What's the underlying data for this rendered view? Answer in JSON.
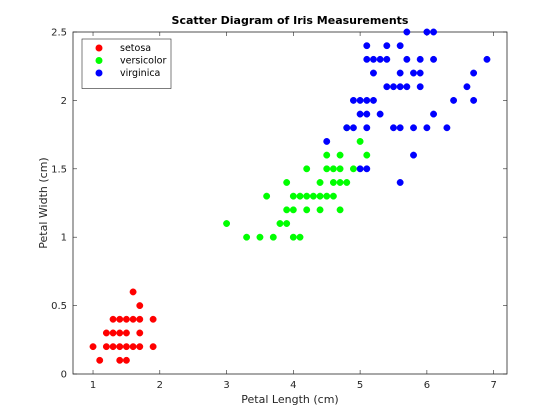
{
  "chart_data": {
    "type": "scatter",
    "title": "Scatter Diagram of Iris Measurements",
    "xlabel": "Petal Length (cm)",
    "ylabel": "Petal Width (cm)",
    "xlim": [
      0.7,
      7.2
    ],
    "ylim": [
      0,
      2.5
    ],
    "xticks": [
      1,
      2,
      3,
      4,
      5,
      6,
      7
    ],
    "yticks": [
      0,
      0.5,
      1,
      1.5,
      2,
      2.5
    ],
    "xtick_labels": [
      "1",
      "2",
      "3",
      "4",
      "5",
      "6",
      "7"
    ],
    "ytick_labels": [
      "0",
      "0.5",
      "1",
      "1.5",
      "2",
      "2.5"
    ],
    "grid": false,
    "legend_position": "top-left",
    "series": [
      {
        "name": "setosa",
        "color": "#ff0000",
        "points": [
          [
            1.0,
            0.2
          ],
          [
            1.1,
            0.1
          ],
          [
            1.2,
            0.2
          ],
          [
            1.3,
            0.2
          ],
          [
            1.3,
            0.3
          ],
          [
            1.3,
            0.4
          ],
          [
            1.4,
            0.1
          ],
          [
            1.4,
            0.2
          ],
          [
            1.4,
            0.3
          ],
          [
            1.5,
            0.1
          ],
          [
            1.5,
            0.2
          ],
          [
            1.5,
            0.3
          ],
          [
            1.5,
            0.4
          ],
          [
            1.6,
            0.2
          ],
          [
            1.6,
            0.4
          ],
          [
            1.6,
            0.6
          ],
          [
            1.7,
            0.2
          ],
          [
            1.7,
            0.3
          ],
          [
            1.7,
            0.4
          ],
          [
            1.7,
            0.5
          ],
          [
            1.9,
            0.2
          ],
          [
            1.9,
            0.4
          ],
          [
            1.2,
            0.3
          ],
          [
            1.4,
            0.4
          ]
        ]
      },
      {
        "name": "versicolor",
        "color": "#00ff00",
        "points": [
          [
            3.0,
            1.1
          ],
          [
            3.3,
            1.0
          ],
          [
            3.5,
            1.0
          ],
          [
            3.6,
            1.3
          ],
          [
            3.7,
            1.0
          ],
          [
            3.8,
            1.1
          ],
          [
            3.9,
            1.1
          ],
          [
            3.9,
            1.2
          ],
          [
            3.9,
            1.4
          ],
          [
            4.0,
            1.0
          ],
          [
            4.0,
            1.2
          ],
          [
            4.0,
            1.3
          ],
          [
            4.1,
            1.0
          ],
          [
            4.1,
            1.3
          ],
          [
            4.2,
            1.2
          ],
          [
            4.2,
            1.3
          ],
          [
            4.2,
            1.5
          ],
          [
            4.3,
            1.3
          ],
          [
            4.4,
            1.2
          ],
          [
            4.4,
            1.3
          ],
          [
            4.4,
            1.4
          ],
          [
            4.5,
            1.3
          ],
          [
            4.5,
            1.5
          ],
          [
            4.5,
            1.6
          ],
          [
            4.6,
            1.3
          ],
          [
            4.6,
            1.4
          ],
          [
            4.6,
            1.5
          ],
          [
            4.7,
            1.2
          ],
          [
            4.7,
            1.4
          ],
          [
            4.7,
            1.5
          ],
          [
            4.7,
            1.6
          ],
          [
            4.8,
            1.4
          ],
          [
            4.8,
            1.8
          ],
          [
            4.9,
            1.5
          ],
          [
            5.0,
            1.7
          ],
          [
            5.1,
            1.6
          ]
        ]
      },
      {
        "name": "virginica",
        "color": "#0000ff",
        "points": [
          [
            4.5,
            1.7
          ],
          [
            4.8,
            1.8
          ],
          [
            4.9,
            1.8
          ],
          [
            4.9,
            2.0
          ],
          [
            5.0,
            1.5
          ],
          [
            5.0,
            1.9
          ],
          [
            5.0,
            2.0
          ],
          [
            5.1,
            1.5
          ],
          [
            5.1,
            1.8
          ],
          [
            5.1,
            1.9
          ],
          [
            5.1,
            2.0
          ],
          [
            5.1,
            2.3
          ],
          [
            5.1,
            2.4
          ],
          [
            5.2,
            2.0
          ],
          [
            5.2,
            2.3
          ],
          [
            5.3,
            1.9
          ],
          [
            5.3,
            2.3
          ],
          [
            5.4,
            2.1
          ],
          [
            5.4,
            2.3
          ],
          [
            5.5,
            1.8
          ],
          [
            5.5,
            2.1
          ],
          [
            5.6,
            1.4
          ],
          [
            5.6,
            1.8
          ],
          [
            5.6,
            2.1
          ],
          [
            5.6,
            2.2
          ],
          [
            5.6,
            2.4
          ],
          [
            5.7,
            2.1
          ],
          [
            5.7,
            2.3
          ],
          [
            5.7,
            2.5
          ],
          [
            5.8,
            1.6
          ],
          [
            5.8,
            1.8
          ],
          [
            5.8,
            2.2
          ],
          [
            5.9,
            2.1
          ],
          [
            5.9,
            2.3
          ],
          [
            6.0,
            1.8
          ],
          [
            6.0,
            2.5
          ],
          [
            6.1,
            1.9
          ],
          [
            6.1,
            2.3
          ],
          [
            6.1,
            2.5
          ],
          [
            6.3,
            1.8
          ],
          [
            6.4,
            2.0
          ],
          [
            6.6,
            2.1
          ],
          [
            6.7,
            2.0
          ],
          [
            6.7,
            2.2
          ],
          [
            6.9,
            2.3
          ],
          [
            5.9,
            2.2
          ],
          [
            5.4,
            2.4
          ],
          [
            5.2,
            2.2
          ]
        ]
      }
    ]
  }
}
